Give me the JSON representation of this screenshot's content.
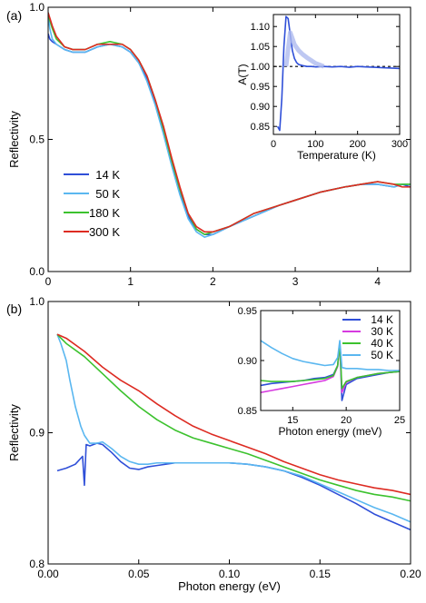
{
  "chart_data": [
    {
      "panel": "(a)",
      "type": "line",
      "xlabel": "",
      "ylabel": "Reflectivity",
      "xlim": [
        0,
        4.4
      ],
      "ylim": [
        0,
        1.0
      ],
      "xticks": [
        0,
        1,
        2,
        3,
        4
      ],
      "yticks": [
        0.0,
        0.5,
        1.0
      ],
      "yticklabels": [
        "0.0",
        "0.5",
        "1.0"
      ],
      "legend": "center-left",
      "series": [
        {
          "name": "14 K",
          "color": "#2f4fd8",
          "x": [
            0.0,
            0.02,
            0.05,
            0.1,
            0.2,
            0.3,
            0.45,
            0.6,
            0.75,
            0.9,
            1.0,
            1.1,
            1.2,
            1.3,
            1.4,
            1.5,
            1.6,
            1.7,
            1.8,
            1.9,
            2.0,
            2.2,
            2.5,
            2.8,
            3.0,
            3.3,
            3.6,
            3.8,
            4.0,
            4.2,
            4.3,
            4.4
          ],
          "y": [
            0.9,
            0.88,
            0.87,
            0.86,
            0.84,
            0.83,
            0.83,
            0.85,
            0.86,
            0.85,
            0.83,
            0.79,
            0.73,
            0.64,
            0.53,
            0.41,
            0.3,
            0.21,
            0.16,
            0.14,
            0.14,
            0.17,
            0.21,
            0.25,
            0.27,
            0.3,
            0.32,
            0.33,
            0.33,
            0.32,
            0.33,
            0.32
          ]
        },
        {
          "name": "50 K",
          "color": "#5ab7f0",
          "x": [
            0.0,
            0.02,
            0.05,
            0.1,
            0.2,
            0.3,
            0.45,
            0.6,
            0.75,
            0.9,
            1.0,
            1.1,
            1.2,
            1.3,
            1.4,
            1.5,
            1.6,
            1.7,
            1.8,
            1.9,
            2.0,
            2.2,
            2.5,
            2.8,
            3.0,
            3.3,
            3.6,
            3.8,
            4.0,
            4.2,
            4.3,
            4.4
          ],
          "y": [
            0.97,
            0.92,
            0.88,
            0.86,
            0.84,
            0.83,
            0.83,
            0.85,
            0.86,
            0.85,
            0.83,
            0.79,
            0.72,
            0.63,
            0.52,
            0.4,
            0.29,
            0.2,
            0.15,
            0.13,
            0.14,
            0.17,
            0.21,
            0.25,
            0.27,
            0.3,
            0.32,
            0.33,
            0.33,
            0.32,
            0.33,
            0.33
          ]
        },
        {
          "name": "180 K",
          "color": "#3cc22e",
          "x": [
            0.0,
            0.02,
            0.05,
            0.1,
            0.2,
            0.3,
            0.45,
            0.6,
            0.75,
            0.9,
            1.0,
            1.1,
            1.2,
            1.3,
            1.4,
            1.5,
            1.6,
            1.7,
            1.8,
            1.9,
            2.0,
            2.2,
            2.5,
            2.8,
            3.0,
            3.3,
            3.6,
            3.8,
            4.0,
            4.2,
            4.3,
            4.4
          ],
          "y": [
            0.98,
            0.95,
            0.92,
            0.88,
            0.85,
            0.84,
            0.84,
            0.86,
            0.87,
            0.86,
            0.84,
            0.8,
            0.74,
            0.65,
            0.54,
            0.42,
            0.31,
            0.22,
            0.16,
            0.14,
            0.15,
            0.17,
            0.22,
            0.25,
            0.27,
            0.3,
            0.32,
            0.33,
            0.34,
            0.33,
            0.33,
            0.33
          ]
        },
        {
          "name": "300 K",
          "color": "#dd2b22",
          "x": [
            0.0,
            0.02,
            0.05,
            0.1,
            0.2,
            0.3,
            0.45,
            0.6,
            0.75,
            0.9,
            1.0,
            1.1,
            1.2,
            1.3,
            1.4,
            1.5,
            1.6,
            1.7,
            1.8,
            1.9,
            2.0,
            2.2,
            2.5,
            2.8,
            3.0,
            3.3,
            3.6,
            3.8,
            4.0,
            4.2,
            4.3,
            4.4
          ],
          "y": [
            0.98,
            0.96,
            0.93,
            0.89,
            0.85,
            0.84,
            0.84,
            0.86,
            0.86,
            0.86,
            0.84,
            0.8,
            0.74,
            0.65,
            0.55,
            0.43,
            0.32,
            0.22,
            0.17,
            0.15,
            0.15,
            0.17,
            0.22,
            0.25,
            0.27,
            0.3,
            0.32,
            0.33,
            0.34,
            0.33,
            0.32,
            0.32
          ]
        }
      ]
    },
    {
      "panel": "(a) inset",
      "type": "line",
      "xlabel": "Temperature (K)",
      "ylabel": "A(T)",
      "xlim": [
        0,
        300
      ],
      "ylim": [
        0.83,
        1.13
      ],
      "xticks": [
        0,
        100,
        200,
        300
      ],
      "yticks": [
        0.85,
        0.9,
        0.95,
        1.0,
        1.05,
        1.1
      ],
      "yticklabels": [
        "0.85",
        "0.90",
        "0.95",
        "1.00",
        "1.05",
        "1.10"
      ],
      "reference_line": 1.0,
      "series": [
        {
          "color": "#2f4fd8",
          "x": [
            10,
            15,
            20,
            25,
            30,
            35,
            40,
            45,
            50,
            55,
            60,
            70,
            80,
            90,
            100,
            120,
            140,
            160,
            180,
            200,
            220,
            240,
            260,
            280,
            300
          ],
          "y": [
            0.85,
            0.84,
            0.92,
            1.05,
            1.125,
            1.12,
            1.08,
            1.04,
            1.02,
            1.01,
            1.005,
            1.002,
            1.0,
            1.0,
            0.999,
            1.0,
            0.999,
            1.0,
            0.998,
            1.0,
            0.999,
            0.998,
            0.997,
            0.996,
            0.995
          ]
        },
        {
          "color": "#aebaef",
          "x": [
            30,
            40,
            50,
            60,
            70,
            80,
            90,
            100,
            110,
            120
          ],
          "y": [
            1.0,
            1.085,
            1.055,
            1.04,
            1.03,
            1.022,
            1.015,
            1.008,
            1.004,
            1.0
          ]
        }
      ]
    },
    {
      "panel": "(b)",
      "type": "line",
      "xlabel": "Photon energy (eV)",
      "ylabel": "Reflectivity",
      "xlim": [
        0,
        0.2
      ],
      "ylim": [
        0.8,
        1.0
      ],
      "xticks": [
        0.0,
        0.05,
        0.1,
        0.15,
        0.2
      ],
      "xticklabels": [
        "0.00",
        "0.05",
        "0.10",
        "0.15",
        "0.20"
      ],
      "yticks": [
        0.8,
        0.9,
        1.0
      ],
      "yticklabels": [
        "0.8",
        "0.9",
        "1.0"
      ],
      "series": [
        {
          "name": "14 K",
          "color": "#2f4fd8",
          "x": [
            0.005,
            0.01,
            0.015,
            0.019,
            0.02,
            0.021,
            0.023,
            0.027,
            0.03,
            0.035,
            0.04,
            0.045,
            0.05,
            0.055,
            0.06,
            0.07,
            0.08,
            0.09,
            0.1,
            0.11,
            0.12,
            0.13,
            0.14,
            0.15,
            0.16,
            0.17,
            0.18,
            0.19,
            0.2
          ],
          "y": [
            0.871,
            0.873,
            0.876,
            0.882,
            0.86,
            0.891,
            0.89,
            0.892,
            0.891,
            0.885,
            0.878,
            0.873,
            0.872,
            0.874,
            0.875,
            0.877,
            0.877,
            0.877,
            0.877,
            0.876,
            0.874,
            0.871,
            0.866,
            0.86,
            0.853,
            0.846,
            0.838,
            0.832,
            0.826
          ]
        },
        {
          "name": "50 K",
          "color": "#5ab7f0",
          "x": [
            0.005,
            0.007,
            0.01,
            0.012,
            0.015,
            0.018,
            0.02,
            0.023,
            0.027,
            0.03,
            0.035,
            0.04,
            0.045,
            0.05,
            0.055,
            0.06,
            0.07,
            0.08,
            0.09,
            0.1,
            0.11,
            0.12,
            0.13,
            0.14,
            0.15,
            0.16,
            0.17,
            0.18,
            0.19,
            0.2
          ],
          "y": [
            0.975,
            0.968,
            0.955,
            0.94,
            0.92,
            0.905,
            0.898,
            0.892,
            0.892,
            0.893,
            0.888,
            0.882,
            0.878,
            0.876,
            0.876,
            0.877,
            0.877,
            0.877,
            0.877,
            0.877,
            0.876,
            0.874,
            0.871,
            0.867,
            0.861,
            0.855,
            0.849,
            0.843,
            0.838,
            0.832
          ]
        },
        {
          "name": "180 K",
          "color": "#3cc22e",
          "x": [
            0.005,
            0.01,
            0.02,
            0.03,
            0.04,
            0.05,
            0.06,
            0.07,
            0.08,
            0.09,
            0.1,
            0.11,
            0.12,
            0.13,
            0.14,
            0.15,
            0.16,
            0.17,
            0.18,
            0.19,
            0.2
          ],
          "y": [
            0.975,
            0.968,
            0.958,
            0.945,
            0.932,
            0.92,
            0.91,
            0.902,
            0.896,
            0.892,
            0.888,
            0.884,
            0.879,
            0.874,
            0.869,
            0.864,
            0.86,
            0.856,
            0.853,
            0.851,
            0.848
          ]
        },
        {
          "name": "300 K",
          "color": "#dd2b22",
          "x": [
            0.005,
            0.01,
            0.02,
            0.03,
            0.04,
            0.05,
            0.06,
            0.07,
            0.08,
            0.09,
            0.1,
            0.11,
            0.12,
            0.13,
            0.14,
            0.15,
            0.16,
            0.17,
            0.18,
            0.19,
            0.2
          ],
          "y": [
            0.975,
            0.972,
            0.962,
            0.95,
            0.94,
            0.932,
            0.922,
            0.913,
            0.905,
            0.899,
            0.894,
            0.889,
            0.884,
            0.878,
            0.873,
            0.868,
            0.864,
            0.861,
            0.858,
            0.856,
            0.853
          ]
        }
      ]
    },
    {
      "panel": "(b) inset",
      "type": "line",
      "xlabel": "Photon energy (meV)",
      "ylabel": "",
      "xlim": [
        12,
        25
      ],
      "ylim": [
        0.85,
        0.95
      ],
      "xticks": [
        15,
        20,
        25
      ],
      "yticks": [
        0.85,
        0.9,
        0.95
      ],
      "yticklabels": [
        "0.85",
        "0.90",
        "0.95"
      ],
      "legend": "top-right",
      "series": [
        {
          "name": "14 K",
          "color": "#2f4fd8",
          "x": [
            12,
            13,
            14,
            15,
            16,
            17,
            18,
            18.8,
            19.2,
            19.4,
            19.6,
            20,
            21,
            22,
            23,
            24,
            25
          ],
          "y": [
            0.875,
            0.877,
            0.878,
            0.879,
            0.88,
            0.882,
            0.883,
            0.886,
            0.895,
            0.918,
            0.86,
            0.876,
            0.882,
            0.884,
            0.886,
            0.888,
            0.889
          ]
        },
        {
          "name": "30 K",
          "color": "#d63adf",
          "x": [
            12,
            13,
            14,
            15,
            16,
            17,
            18,
            18.8,
            19.2,
            19.4,
            19.6,
            20,
            21,
            22,
            23,
            24,
            25
          ],
          "y": [
            0.868,
            0.87,
            0.872,
            0.874,
            0.876,
            0.878,
            0.88,
            0.884,
            0.894,
            0.916,
            0.868,
            0.878,
            0.883,
            0.885,
            0.887,
            0.888,
            0.889
          ]
        },
        {
          "name": "40 K",
          "color": "#3cc22e",
          "x": [
            12,
            13,
            14,
            15,
            16,
            17,
            18,
            18.8,
            19.2,
            19.4,
            19.6,
            20,
            21,
            22,
            23,
            24,
            25
          ],
          "y": [
            0.88,
            0.879,
            0.879,
            0.879,
            0.88,
            0.881,
            0.882,
            0.885,
            0.895,
            0.917,
            0.872,
            0.879,
            0.883,
            0.885,
            0.887,
            0.888,
            0.889
          ]
        },
        {
          "name": "50 K",
          "color": "#5ab7f0",
          "x": [
            12,
            13,
            14,
            15,
            16,
            17,
            18,
            18.8,
            19.2,
            19.4,
            19.6,
            20,
            21,
            22,
            23,
            24,
            25
          ],
          "y": [
            0.92,
            0.913,
            0.907,
            0.902,
            0.899,
            0.897,
            0.895,
            0.896,
            0.903,
            0.92,
            0.893,
            0.892,
            0.892,
            0.891,
            0.891,
            0.89,
            0.89
          ]
        }
      ]
    }
  ]
}
